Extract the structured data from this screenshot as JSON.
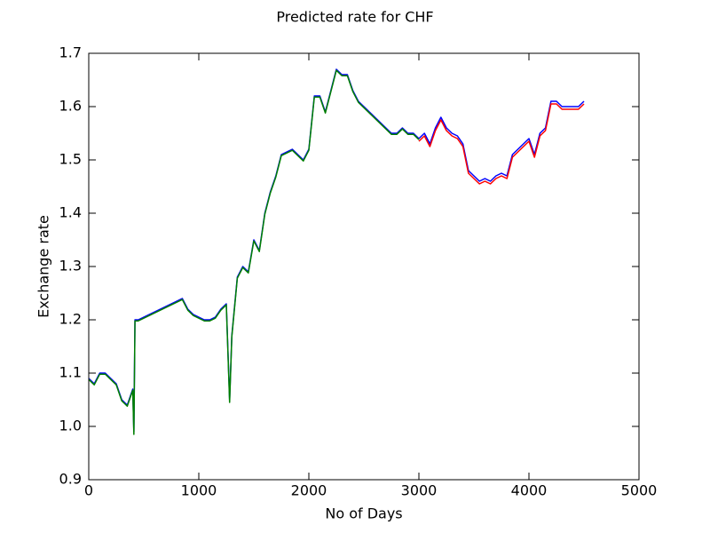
{
  "chart_data": {
    "type": "line",
    "title": "Predicted rate for CHF",
    "x_label": "No of Days",
    "y_label": "Exchange rate",
    "x": [
      0,
      50,
      100,
      150,
      200,
      250,
      300,
      350,
      400,
      410,
      420,
      450,
      500,
      550,
      600,
      650,
      700,
      750,
      800,
      850,
      900,
      950,
      1000,
      1050,
      1100,
      1150,
      1200,
      1250,
      1280,
      1300,
      1350,
      1400,
      1450,
      1500,
      1550,
      1600,
      1650,
      1700,
      1750,
      1800,
      1850,
      1900,
      1950,
      2000,
      2050,
      2100,
      2150,
      2200,
      2250,
      2300,
      2350,
      2400,
      2450,
      2500,
      2550,
      2600,
      2650,
      2700,
      2750,
      2800,
      2850,
      2900,
      2950,
      3000,
      3050,
      3100,
      3150,
      3200,
      3250,
      3300,
      3350,
      3400,
      3450,
      3500,
      3550,
      3600,
      3650,
      3700,
      3750,
      3800,
      3850,
      3900,
      3950,
      4000,
      4050,
      4100,
      4150,
      4200,
      4250,
      4300,
      4350,
      4400,
      4450,
      4500
    ],
    "series": [
      {
        "color": "#0000ff",
        "values": [
          1.09,
          1.08,
          1.1,
          1.1,
          1.09,
          1.08,
          1.05,
          1.04,
          1.07,
          0.99,
          1.2,
          1.2,
          1.205,
          1.21,
          1.215,
          1.22,
          1.225,
          1.23,
          1.235,
          1.24,
          1.22,
          1.21,
          1.205,
          1.2,
          1.2,
          1.205,
          1.22,
          1.23,
          1.05,
          1.17,
          1.28,
          1.3,
          1.29,
          1.35,
          1.33,
          1.4,
          1.44,
          1.47,
          1.51,
          1.515,
          1.52,
          1.51,
          1.5,
          1.52,
          1.62,
          1.62,
          1.59,
          1.63,
          1.67,
          1.66,
          1.66,
          1.63,
          1.61,
          1.6,
          1.59,
          1.58,
          1.57,
          1.56,
          1.55,
          1.55,
          1.56,
          1.55,
          1.55,
          1.54,
          1.55,
          1.53,
          1.56,
          1.58,
          1.56,
          1.55,
          1.545,
          1.53,
          1.48,
          1.47,
          1.46,
          1.465,
          1.46,
          1.47,
          1.475,
          1.47,
          1.51,
          1.52,
          1.53,
          1.54,
          1.51,
          1.55,
          1.56,
          1.61,
          1.61,
          1.6,
          1.6,
          1.6,
          1.6,
          1.61
        ]
      },
      {
        "color": "#008000",
        "values": [
          1.088,
          1.078,
          1.098,
          1.098,
          1.088,
          1.078,
          1.048,
          1.038,
          1.068,
          0.985,
          1.198,
          1.198,
          1.203,
          1.208,
          1.213,
          1.218,
          1.223,
          1.228,
          1.233,
          1.238,
          1.218,
          1.208,
          1.203,
          1.198,
          1.198,
          1.203,
          1.218,
          1.228,
          1.045,
          1.168,
          1.278,
          1.298,
          1.288,
          1.348,
          1.328,
          1.398,
          1.438,
          1.468,
          1.508,
          1.513,
          1.518,
          1.508,
          1.498,
          1.518,
          1.618,
          1.618,
          1.588,
          1.628,
          1.668,
          1.658,
          1.658,
          1.628,
          1.608,
          1.598,
          1.588,
          1.578,
          1.568,
          1.558,
          1.548,
          1.548,
          1.558,
          1.548,
          1.548,
          1.538,
          null,
          null,
          null,
          null,
          null,
          null,
          null,
          null,
          null,
          null,
          null,
          null,
          null,
          null,
          null,
          null,
          null,
          null,
          null,
          null,
          null,
          null,
          null,
          null,
          null,
          null,
          null,
          null,
          null,
          null
        ]
      },
      {
        "color": "#ff0000",
        "values": [
          null,
          null,
          null,
          null,
          null,
          null,
          null,
          null,
          null,
          null,
          null,
          null,
          null,
          null,
          null,
          null,
          null,
          null,
          null,
          null,
          null,
          null,
          null,
          null,
          null,
          null,
          null,
          null,
          null,
          null,
          null,
          null,
          null,
          null,
          null,
          null,
          null,
          null,
          null,
          null,
          null,
          null,
          null,
          null,
          null,
          null,
          null,
          null,
          null,
          null,
          null,
          null,
          null,
          null,
          null,
          null,
          null,
          null,
          null,
          null,
          null,
          null,
          null,
          1.535,
          1.545,
          1.525,
          1.555,
          1.575,
          1.555,
          1.545,
          1.54,
          1.525,
          1.475,
          1.465,
          1.455,
          1.46,
          1.455,
          1.465,
          1.47,
          1.465,
          1.505,
          1.515,
          1.525,
          1.535,
          1.505,
          1.545,
          1.555,
          1.605,
          1.605,
          1.595,
          1.595,
          1.595,
          1.595,
          1.605
        ]
      }
    ],
    "xlim": [
      0,
      5000
    ],
    "xticks": [
      0,
      1000,
      2000,
      3000,
      4000,
      5000
    ],
    "ylim": [
      0.9,
      1.7
    ],
    "yticks": [
      {
        "value": 0.9,
        "label": "0.9"
      },
      1.0,
      1.1,
      1.2,
      1.3,
      1.4,
      1.5,
      1.6,
      1.7
    ]
  }
}
